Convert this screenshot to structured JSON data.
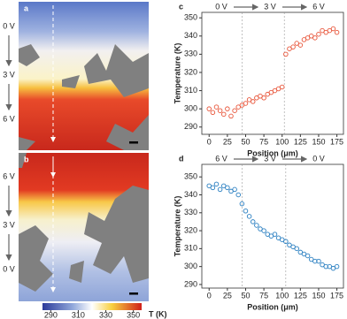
{
  "panels": {
    "a": {
      "label": "a",
      "voltages": [
        "0 V",
        "3 V",
        "6 V"
      ]
    },
    "b": {
      "label": "b",
      "voltages": [
        "6 V",
        "3 V",
        "0 V"
      ]
    }
  },
  "chart_data": [
    {
      "type": "scatter",
      "panel_label": "c",
      "annotations": [
        "0 V",
        "3 V",
        "6 V"
      ],
      "xlabel": "Position (μm)",
      "ylabel": "Temperature (K)",
      "color": "#e8553a",
      "x": [
        0,
        5,
        10,
        15,
        20,
        25,
        30,
        35,
        40,
        45,
        50,
        55,
        60,
        65,
        70,
        75,
        80,
        85,
        90,
        95,
        100,
        105,
        110,
        115,
        120,
        125,
        130,
        135,
        140,
        145,
        150,
        155,
        160,
        165,
        170,
        175
      ],
      "values": [
        300,
        298,
        301,
        299,
        297,
        300,
        296,
        299,
        301,
        302,
        303,
        305,
        304,
        306,
        307,
        306,
        308,
        309,
        310,
        311,
        312,
        330,
        333,
        334,
        336,
        335,
        338,
        339,
        340,
        339,
        341,
        343,
        342,
        343,
        344,
        342
      ],
      "vlines": [
        45,
        103
      ],
      "xlim": [
        -10,
        184
      ],
      "xticks": [
        0,
        25,
        50,
        75,
        100,
        125,
        150,
        175
      ],
      "ylim": [
        286,
        353
      ],
      "yticks": [
        290,
        300,
        310,
        320,
        330,
        340,
        350
      ]
    },
    {
      "type": "scatter",
      "panel_label": "d",
      "annotations": [
        "6 V",
        "3 V",
        "0 V"
      ],
      "xlabel": "Position (μm)",
      "ylabel": "Temperature (K)",
      "color": "#2a7fc1",
      "x": [
        0,
        5,
        10,
        15,
        20,
        25,
        30,
        35,
        40,
        45,
        50,
        55,
        60,
        65,
        70,
        75,
        80,
        85,
        90,
        95,
        100,
        105,
        110,
        115,
        120,
        125,
        130,
        135,
        140,
        145,
        150,
        155,
        160,
        165,
        170,
        175
      ],
      "values": [
        345,
        344,
        346,
        343,
        345,
        344,
        342,
        343,
        340,
        335,
        331,
        328,
        325,
        323,
        321,
        320,
        318,
        317,
        318,
        316,
        315,
        314,
        312,
        311,
        310,
        308,
        307,
        306,
        304,
        303,
        303,
        301,
        300,
        300,
        299,
        300
      ],
      "vlines": [
        45,
        105
      ],
      "xlim": [
        -10,
        184
      ],
      "xticks": [
        0,
        25,
        50,
        75,
        100,
        125,
        150,
        175
      ],
      "ylim": [
        288,
        357
      ],
      "yticks": [
        290,
        300,
        310,
        320,
        330,
        340,
        350
      ]
    },
    {
      "type": "colorbar",
      "label": "T (K)",
      "xlim": [
        284,
        356
      ],
      "xticks": [
        290,
        310,
        330,
        350
      ]
    }
  ]
}
